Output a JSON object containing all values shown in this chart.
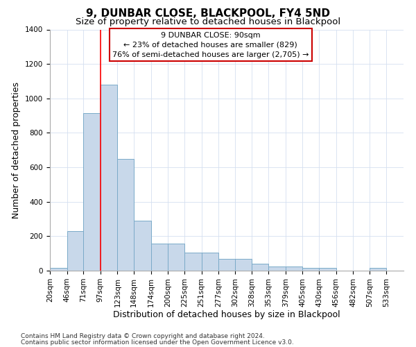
{
  "title": "9, DUNBAR CLOSE, BLACKPOOL, FY4 5ND",
  "subtitle": "Size of property relative to detached houses in Blackpool",
  "xlabel": "Distribution of detached houses by size in Blackpool",
  "ylabel": "Number of detached properties",
  "footer_line1": "Contains HM Land Registry data © Crown copyright and database right 2024.",
  "footer_line2": "Contains public sector information licensed under the Open Government Licence v3.0.",
  "annotation_title": "9 DUNBAR CLOSE: 90sqm",
  "annotation_line1": "← 23% of detached houses are smaller (829)",
  "annotation_line2": "76% of semi-detached houses are larger (2,705) →",
  "bar_left_edges": [
    20,
    46,
    71,
    97,
    123,
    148,
    174,
    200,
    225,
    251,
    277,
    302,
    328,
    353,
    379,
    405,
    430,
    456,
    482,
    507
  ],
  "bar_widths": [
    26,
    25,
    26,
    26,
    25,
    26,
    26,
    25,
    26,
    26,
    25,
    26,
    25,
    26,
    26,
    25,
    26,
    26,
    25,
    26
  ],
  "bar_heights": [
    15,
    228,
    915,
    1080,
    650,
    290,
    157,
    157,
    105,
    105,
    70,
    70,
    40,
    25,
    25,
    18,
    18,
    0,
    0,
    15
  ],
  "bar_color": "#c8d8ea",
  "bar_edge_color": "#7aaac8",
  "red_line_x": 97,
  "ylim": [
    0,
    1400
  ],
  "yticks": [
    0,
    200,
    400,
    600,
    800,
    1000,
    1200,
    1400
  ],
  "xtick_labels": [
    "20sqm",
    "46sqm",
    "71sqm",
    "97sqm",
    "123sqm",
    "148sqm",
    "174sqm",
    "200sqm",
    "225sqm",
    "251sqm",
    "277sqm",
    "302sqm",
    "328sqm",
    "353sqm",
    "379sqm",
    "405sqm",
    "430sqm",
    "456sqm",
    "482sqm",
    "507sqm",
    "533sqm"
  ],
  "xtick_positions": [
    20,
    46,
    71,
    97,
    123,
    148,
    174,
    200,
    225,
    251,
    277,
    302,
    328,
    353,
    379,
    405,
    430,
    456,
    482,
    507,
    533
  ],
  "annotation_box_color": "#ffffff",
  "annotation_box_edge_color": "#cc0000",
  "title_fontsize": 11,
  "subtitle_fontsize": 9.5,
  "axis_label_fontsize": 9,
  "tick_fontsize": 7.5,
  "annotation_fontsize": 8,
  "footer_fontsize": 6.5,
  "grid_color": "#d4dff0",
  "background_color": "#ffffff"
}
